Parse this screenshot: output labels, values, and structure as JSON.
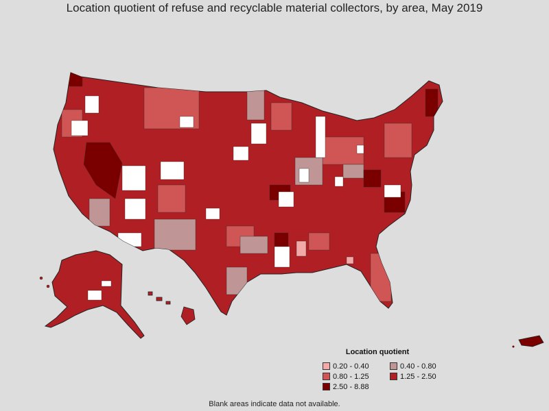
{
  "title": "Location quotient of refuse and recyclable material collectors, by area, May 2019",
  "legend": {
    "title": "Location quotient",
    "items": [
      {
        "label": "0.20 - 0.40",
        "color": "#f4a9a9"
      },
      {
        "label": "0.40 - 0.80",
        "color": "#bf9595"
      },
      {
        "label": "0.80 - 1.25",
        "color": "#d05555"
      },
      {
        "label": "1.25 - 2.50",
        "color": "#b01f24"
      },
      {
        "label": "2.50 - 8.88",
        "color": "#7a0000"
      }
    ]
  },
  "note": "Blank areas indicate data not available.",
  "colors": {
    "background": "#dddddd",
    "no_data": "#ffffff",
    "border": "#222222"
  }
}
